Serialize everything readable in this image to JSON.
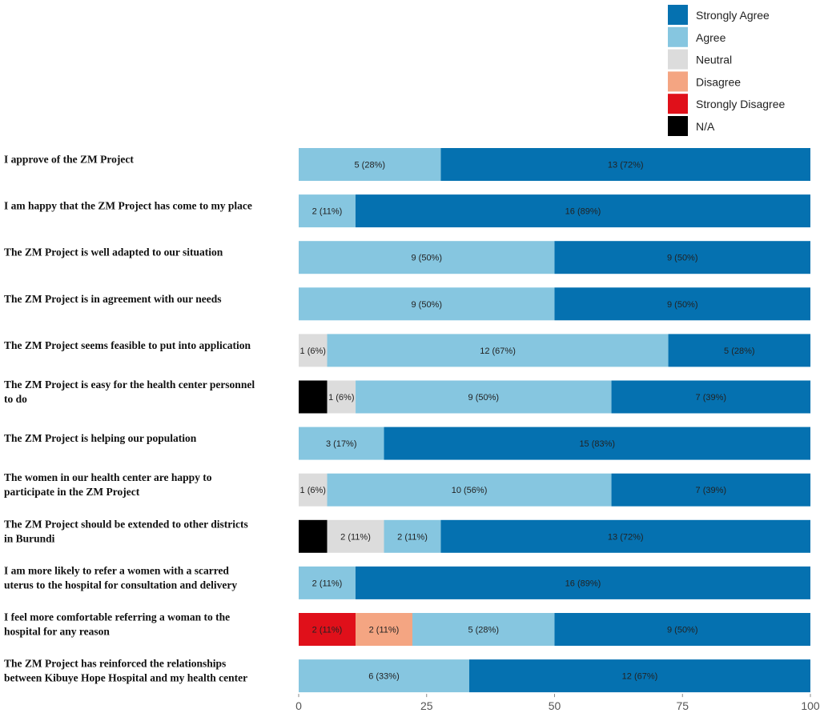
{
  "chart_data": {
    "type": "bar",
    "orientation": "horizontal",
    "stacked": true,
    "xlim": [
      0,
      100
    ],
    "xticks": [
      "0",
      "25",
      "50",
      "75",
      "100"
    ],
    "grid": false,
    "legend_position": "top-right",
    "legend": [
      {
        "name": "Strongly Agree",
        "color": "#0571b0"
      },
      {
        "name": "Agree",
        "color": "#86c6e0"
      },
      {
        "name": "Neutral",
        "color": "#dcdcdc"
      },
      {
        "name": "Disagree",
        "color": "#f4a582"
      },
      {
        "name": "Strongly Disagree",
        "color": "#e0101a"
      },
      {
        "name": "N/A",
        "color": "#000000"
      }
    ],
    "categories": [
      "I approve of the ZM Project",
      "I am happy that the ZM Project has come to my place",
      "The ZM Project is well adapted to our situation",
      "The ZM Project is in agreement with our needs",
      "The ZM Project seems feasible to put into application",
      "The ZM Project is easy for the health center personnel to do",
      "The ZM Project is helping our population",
      "The women in our health center are happy to participate in the ZM Project",
      "The ZM Project should be extended to other districts in Burundi",
      "I am more likely to refer a women with a scarred uterus to the hospital for consultation and delivery",
      "I feel more comfortable referring a woman to the hospital for any reason",
      "The ZM Project has reinforced the relationships between Kibuye Hope Hospital and my health center"
    ],
    "label_lines": [
      [
        "I approve of the ZM Project"
      ],
      [
        "I am happy that the ZM Project has come to my place"
      ],
      [
        "The ZM Project is well adapted to our situation"
      ],
      [
        "The ZM Project is in agreement with our needs"
      ],
      [
        "The ZM Project seems feasible to put into application"
      ],
      [
        "The ZM Project is easy for the health center personnel",
        "to do"
      ],
      [
        "The ZM Project is helping our population"
      ],
      [
        "The women in our health center are happy to",
        "participate in the ZM Project"
      ],
      [
        "The ZM Project should be extended to other districts",
        "in Burundi"
      ],
      [
        "I am more likely to refer a women with a scarred",
        "uterus to the hospital for consultation and delivery"
      ],
      [
        "I feel more comfortable referring a woman to the",
        "hospital for any reason"
      ],
      [
        "The ZM Project has reinforced the relationships",
        "between Kibuye Hope Hospital and my health center"
      ]
    ],
    "rows": [
      {
        "segments": [
          {
            "series": "Agree",
            "value": 27.78,
            "label": "5 (28%)"
          },
          {
            "series": "Strongly Agree",
            "value": 72.22,
            "label": "13 (72%)"
          }
        ]
      },
      {
        "segments": [
          {
            "series": "Agree",
            "value": 11.11,
            "label": "2 (11%)"
          },
          {
            "series": "Strongly Agree",
            "value": 88.89,
            "label": "16 (89%)"
          }
        ]
      },
      {
        "segments": [
          {
            "series": "Agree",
            "value": 50,
            "label": "9 (50%)"
          },
          {
            "series": "Strongly Agree",
            "value": 50,
            "label": "9 (50%)"
          }
        ]
      },
      {
        "segments": [
          {
            "series": "Agree",
            "value": 50,
            "label": "9 (50%)"
          },
          {
            "series": "Strongly Agree",
            "value": 50,
            "label": "9 (50%)"
          }
        ]
      },
      {
        "segments": [
          {
            "series": "Neutral",
            "value": 5.56,
            "label": "1 (6%)"
          },
          {
            "series": "Agree",
            "value": 66.67,
            "label": "12 (67%)"
          },
          {
            "series": "Strongly Agree",
            "value": 27.78,
            "label": "5 (28%)"
          }
        ]
      },
      {
        "segments": [
          {
            "series": "N/A",
            "value": 5.56,
            "label": ""
          },
          {
            "series": "Neutral",
            "value": 5.56,
            "label": "1 (6%)"
          },
          {
            "series": "Agree",
            "value": 50,
            "label": "9 (50%)"
          },
          {
            "series": "Strongly Agree",
            "value": 38.89,
            "label": "7 (39%)"
          }
        ]
      },
      {
        "segments": [
          {
            "series": "Agree",
            "value": 16.67,
            "label": "3 (17%)"
          },
          {
            "series": "Strongly Agree",
            "value": 83.33,
            "label": "15 (83%)"
          }
        ]
      },
      {
        "segments": [
          {
            "series": "Neutral",
            "value": 5.56,
            "label": "1 (6%)"
          },
          {
            "series": "Agree",
            "value": 55.56,
            "label": "10 (56%)"
          },
          {
            "series": "Strongly Agree",
            "value": 38.89,
            "label": "7 (39%)"
          }
        ]
      },
      {
        "segments": [
          {
            "series": "N/A",
            "value": 5.56,
            "label": ""
          },
          {
            "series": "Neutral",
            "value": 11.11,
            "label": "2 (11%)"
          },
          {
            "series": "Agree",
            "value": 11.11,
            "label": "2 (11%)"
          },
          {
            "series": "Strongly Agree",
            "value": 72.22,
            "label": "13 (72%)"
          }
        ]
      },
      {
        "segments": [
          {
            "series": "Agree",
            "value": 11.11,
            "label": "2 (11%)"
          },
          {
            "series": "Strongly Agree",
            "value": 88.89,
            "label": "16 (89%)"
          }
        ]
      },
      {
        "segments": [
          {
            "series": "Strongly Disagree",
            "value": 11.11,
            "label": "2 (11%)"
          },
          {
            "series": "Disagree",
            "value": 11.11,
            "label": "2 (11%)"
          },
          {
            "series": "Agree",
            "value": 27.78,
            "label": "5 (28%)"
          },
          {
            "series": "Strongly Agree",
            "value": 50,
            "label": "9 (50%)"
          }
        ]
      },
      {
        "segments": [
          {
            "series": "Agree",
            "value": 33.33,
            "label": "6 (33%)"
          },
          {
            "series": "Strongly Agree",
            "value": 66.67,
            "label": "12 (67%)"
          }
        ]
      }
    ]
  }
}
